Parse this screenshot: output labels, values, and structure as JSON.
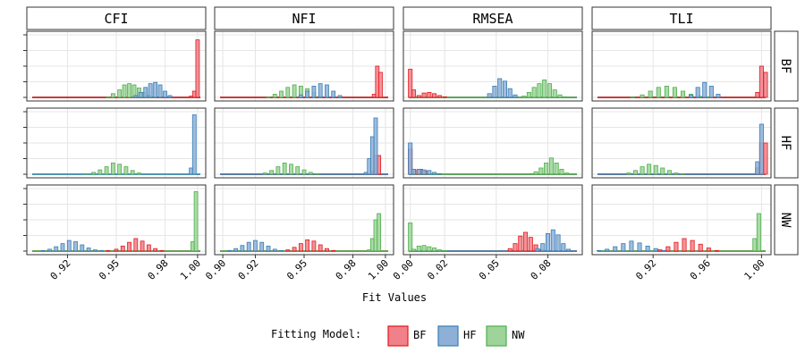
{
  "chart_data": {
    "type": "histogram-facet",
    "xlabel": "Fit Values",
    "legend": {
      "title": "Fitting Model:",
      "placement": "bottom",
      "items": [
        {
          "label": "BF",
          "fill": "#F0808A",
          "stroke": "#E41A1C"
        },
        {
          "label": "HF",
          "fill": "#8FB0D6",
          "stroke": "#377EB8"
        },
        {
          "label": "NW",
          "fill": "#9ED39A",
          "stroke": "#4DAF4A"
        }
      ]
    },
    "columns": [
      {
        "label": "CFI",
        "xlim": [
          0.895,
          1.005
        ],
        "ticks": [
          {
            "v": 0.92,
            "label": "0.92"
          },
          {
            "v": 0.95,
            "label": "0.95"
          },
          {
            "v": 0.98,
            "label": "0.98"
          },
          {
            "v": 1.0,
            "label": "1.00"
          }
        ]
      },
      {
        "label": "NFI",
        "xlim": [
          0.895,
          1.005
        ],
        "ticks": [
          {
            "v": 0.9,
            "label": "0.90"
          },
          {
            "v": 0.92,
            "label": "0.92"
          },
          {
            "v": 0.95,
            "label": "0.95"
          },
          {
            "v": 0.98,
            "label": "0.98"
          },
          {
            "v": 1.0,
            "label": "1.00"
          }
        ]
      },
      {
        "label": "RMSEA",
        "xlim": [
          -0.004,
          0.1
        ],
        "ticks": [
          {
            "v": 0.0,
            "label": "0.00"
          },
          {
            "v": 0.02,
            "label": "0.02"
          },
          {
            "v": 0.05,
            "label": "0.05"
          },
          {
            "v": 0.08,
            "label": "0.08"
          }
        ]
      },
      {
        "label": "TLI",
        "xlim": [
          0.875,
          1.007
        ],
        "ticks": [
          {
            "v": 0.92,
            "label": "0.92"
          },
          {
            "v": 0.96,
            "label": "0.96"
          },
          {
            "v": 1.0,
            "label": "1.00"
          }
        ]
      }
    ],
    "rows": [
      {
        "label": "BF"
      },
      {
        "label": "HF"
      },
      {
        "label": "NW"
      }
    ],
    "ylim": [
      0,
      1
    ],
    "panels": [
      {
        "row": "BF",
        "col": "CFI",
        "binw": 0.0022,
        "series": [
          {
            "model": "NW",
            "x": [
              0.925,
              0.945,
              0.948,
              0.952,
              0.955,
              0.958,
              0.961,
              0.964,
              0.967,
              0.97,
              0.973,
              0.998
            ],
            "y": [
              0,
              0.01,
              0.06,
              0.12,
              0.2,
              0.22,
              0.2,
              0.15,
              0.08,
              0.03,
              0.01,
              0.01
            ]
          },
          {
            "model": "HF",
            "x": [
              0.962,
              0.965,
              0.968,
              0.971,
              0.974,
              0.977,
              0.98,
              0.983
            ],
            "y": [
              0.03,
              0.08,
              0.16,
              0.22,
              0.24,
              0.2,
              0.1,
              0.03
            ]
          },
          {
            "model": "BF",
            "x": [
              0.996,
              0.998,
              1.0
            ],
            "y": [
              0.02,
              0.1,
              0.92
            ]
          }
        ]
      },
      {
        "row": "BF",
        "col": "NFI",
        "binw": 0.0022,
        "series": [
          {
            "model": "NW",
            "x": [
              0.92,
              0.928,
              0.932,
              0.936,
              0.94,
              0.944,
              0.948,
              0.952,
              0.956,
              0.96,
              0.995
            ],
            "y": [
              0,
              0.01,
              0.05,
              0.1,
              0.16,
              0.2,
              0.18,
              0.14,
              0.08,
              0.02,
              0.01
            ]
          },
          {
            "model": "HF",
            "x": [
              0.948,
              0.952,
              0.956,
              0.96,
              0.964,
              0.968,
              0.972
            ],
            "y": [
              0.04,
              0.1,
              0.18,
              0.22,
              0.2,
              0.1,
              0.03
            ]
          },
          {
            "model": "BF",
            "x": [
              0.993,
              0.995,
              0.997
            ],
            "y": [
              0.05,
              0.5,
              0.4
            ]
          }
        ]
      },
      {
        "row": "BF",
        "col": "RMSEA",
        "binw": 0.0022,
        "series": [
          {
            "model": "BF",
            "x": [
              0.0,
              0.002,
              0.005,
              0.008,
              0.011,
              0.014,
              0.017,
              0.02
            ],
            "y": [
              0.45,
              0.12,
              0.03,
              0.07,
              0.08,
              0.06,
              0.03,
              0.01
            ]
          },
          {
            "model": "HF",
            "x": [
              0.046,
              0.049,
              0.052,
              0.055,
              0.058,
              0.061
            ],
            "y": [
              0.06,
              0.18,
              0.3,
              0.26,
              0.14,
              0.04
            ]
          },
          {
            "model": "NW",
            "x": [
              0.066,
              0.069,
              0.072,
              0.075,
              0.078,
              0.081,
              0.084,
              0.087,
              0.09
            ],
            "y": [
              0.02,
              0.08,
              0.16,
              0.22,
              0.28,
              0.22,
              0.12,
              0.04,
              0.01
            ]
          }
        ]
      },
      {
        "row": "BF",
        "col": "TLI",
        "binw": 0.0028,
        "series": [
          {
            "model": "NW",
            "x": [
              0.905,
              0.912,
              0.918,
              0.924,
              0.93,
              0.936,
              0.942,
              0.948,
              0.954,
              0.96
            ],
            "y": [
              0.01,
              0.04,
              0.1,
              0.16,
              0.18,
              0.16,
              0.1,
              0.05,
              0.02,
              0.01
            ]
          },
          {
            "model": "HF",
            "x": [
              0.948,
              0.953,
              0.958,
              0.963,
              0.968
            ],
            "y": [
              0.04,
              0.16,
              0.24,
              0.18,
              0.05
            ]
          },
          {
            "model": "BF",
            "x": [
              0.997,
              1.0,
              1.003
            ],
            "y": [
              0.08,
              0.5,
              0.4
            ]
          }
        ]
      },
      {
        "row": "HF",
        "col": "CFI",
        "binw": 0.0022,
        "series": [
          {
            "model": "NW",
            "x": [
              0.925,
              0.932,
              0.936,
              0.94,
              0.944,
              0.948,
              0.952,
              0.956,
              0.96,
              0.964,
              0.97
            ],
            "y": [
              0,
              0.01,
              0.03,
              0.07,
              0.12,
              0.18,
              0.16,
              0.12,
              0.06,
              0.02,
              0
            ]
          },
          {
            "model": "HF",
            "x": [
              0.996,
              0.998
            ],
            "y": [
              0.1,
              0.95
            ]
          }
        ]
      },
      {
        "row": "HF",
        "col": "NFI",
        "binw": 0.0022,
        "series": [
          {
            "model": "NW",
            "x": [
              0.92,
              0.926,
              0.93,
              0.934,
              0.938,
              0.942,
              0.946,
              0.95,
              0.954,
              0.958
            ],
            "y": [
              0,
              0.02,
              0.06,
              0.12,
              0.18,
              0.16,
              0.12,
              0.07,
              0.03,
              0.01
            ]
          },
          {
            "model": "BF",
            "x": [
              0.992,
              0.994,
              0.996
            ],
            "y": [
              0.05,
              0.3,
              0.3
            ]
          },
          {
            "model": "HF",
            "x": [
              0.988,
              0.99,
              0.992,
              0.994
            ],
            "y": [
              0.03,
              0.25,
              0.6,
              0.9
            ]
          }
        ]
      },
      {
        "row": "HF",
        "col": "RMSEA",
        "binw": 0.0022,
        "series": [
          {
            "model": "BF",
            "x": [
              0.0,
              0.003,
              0.006,
              0.009
            ],
            "y": [
              0.4,
              0.06,
              0.08,
              0.05
            ]
          },
          {
            "model": "HF",
            "x": [
              0.0,
              0.002,
              0.005,
              0.008,
              0.011,
              0.014,
              0.017
            ],
            "y": [
              0.5,
              0.08,
              0.08,
              0.07,
              0.06,
              0.03,
              0.01
            ]
          },
          {
            "model": "NW",
            "x": [
              0.07,
              0.073,
              0.076,
              0.079,
              0.082,
              0.085,
              0.088,
              0.091
            ],
            "y": [
              0.01,
              0.04,
              0.1,
              0.18,
              0.26,
              0.18,
              0.08,
              0.02
            ]
          }
        ]
      },
      {
        "row": "HF",
        "col": "TLI",
        "binw": 0.0028,
        "series": [
          {
            "model": "NW",
            "x": [
              0.895,
              0.902,
              0.907,
              0.912,
              0.917,
              0.922,
              0.927,
              0.932,
              0.937,
              0.942
            ],
            "y": [
              0,
              0.02,
              0.06,
              0.12,
              0.16,
              0.14,
              0.1,
              0.06,
              0.02,
              0.01
            ]
          },
          {
            "model": "BF",
            "x": [
              0.997,
              1.0,
              1.003
            ],
            "y": [
              0.1,
              0.5,
              0.5
            ]
          },
          {
            "model": "HF",
            "x": [
              0.997,
              1.0
            ],
            "y": [
              0.2,
              0.8
            ]
          }
        ]
      },
      {
        "row": "NW",
        "col": "CFI",
        "binw": 0.0022,
        "series": [
          {
            "model": "HF",
            "x": [
              0.905,
              0.909,
              0.913,
              0.917,
              0.921,
              0.925,
              0.929,
              0.933,
              0.937,
              0.941
            ],
            "y": [
              0.01,
              0.03,
              0.07,
              0.12,
              0.17,
              0.15,
              0.1,
              0.05,
              0.02,
              0.01
            ]
          },
          {
            "model": "BF",
            "x": [
              0.945,
              0.95,
              0.954,
              0.958,
              0.962,
              0.966,
              0.97,
              0.974,
              0.978
            ],
            "y": [
              0.01,
              0.03,
              0.08,
              0.14,
              0.2,
              0.16,
              0.1,
              0.04,
              0.01
            ]
          },
          {
            "model": "NW",
            "x": [
              0.997,
              0.999
            ],
            "y": [
              0.15,
              0.95
            ]
          }
        ]
      },
      {
        "row": "NW",
        "col": "NFI",
        "binw": 0.0022,
        "series": [
          {
            "model": "HF",
            "x": [
              0.904,
              0.908,
              0.912,
              0.916,
              0.92,
              0.924,
              0.928,
              0.932,
              0.936
            ],
            "y": [
              0.01,
              0.04,
              0.09,
              0.14,
              0.17,
              0.14,
              0.08,
              0.03,
              0.01
            ]
          },
          {
            "model": "BF",
            "x": [
              0.94,
              0.944,
              0.948,
              0.952,
              0.956,
              0.96,
              0.964,
              0.968
            ],
            "y": [
              0.02,
              0.06,
              0.12,
              0.18,
              0.16,
              0.1,
              0.04,
              0.01
            ]
          },
          {
            "model": "NW",
            "x": [
              0.99,
              0.992,
              0.994,
              0.996
            ],
            "y": [
              0.02,
              0.2,
              0.5,
              0.6
            ]
          }
        ]
      },
      {
        "row": "NW",
        "col": "RMSEA",
        "binw": 0.0022,
        "series": [
          {
            "model": "NW",
            "x": [
              0.0,
              0.002,
              0.005,
              0.008,
              0.011,
              0.014,
              0.017,
              0.02
            ],
            "y": [
              0.45,
              0.03,
              0.08,
              0.09,
              0.07,
              0.05,
              0.02,
              0.01
            ]
          },
          {
            "model": "BF",
            "x": [
              0.058,
              0.061,
              0.064,
              0.067,
              0.07,
              0.073,
              0.076
            ],
            "y": [
              0.04,
              0.12,
              0.24,
              0.3,
              0.22,
              0.1,
              0.02
            ]
          },
          {
            "model": "HF",
            "x": [
              0.074,
              0.077,
              0.08,
              0.083,
              0.086,
              0.089,
              0.092
            ],
            "y": [
              0.04,
              0.12,
              0.28,
              0.34,
              0.26,
              0.12,
              0.03
            ]
          }
        ]
      },
      {
        "row": "NW",
        "col": "TLI",
        "binw": 0.0028,
        "series": [
          {
            "model": "HF",
            "x": [
              0.88,
              0.886,
              0.892,
              0.898,
              0.904,
              0.91,
              0.916,
              0.922,
              0.928,
              0.934
            ],
            "y": [
              0.01,
              0.03,
              0.07,
              0.12,
              0.16,
              0.13,
              0.08,
              0.04,
              0.01,
              0
            ]
          },
          {
            "model": "BF",
            "x": [
              0.925,
              0.931,
              0.937,
              0.943,
              0.949,
              0.955,
              0.961,
              0.967
            ],
            "y": [
              0.02,
              0.07,
              0.14,
              0.2,
              0.17,
              0.11,
              0.05,
              0.01
            ]
          },
          {
            "model": "NW",
            "x": [
              0.995,
              0.998
            ],
            "y": [
              0.2,
              0.6
            ]
          }
        ]
      }
    ]
  }
}
